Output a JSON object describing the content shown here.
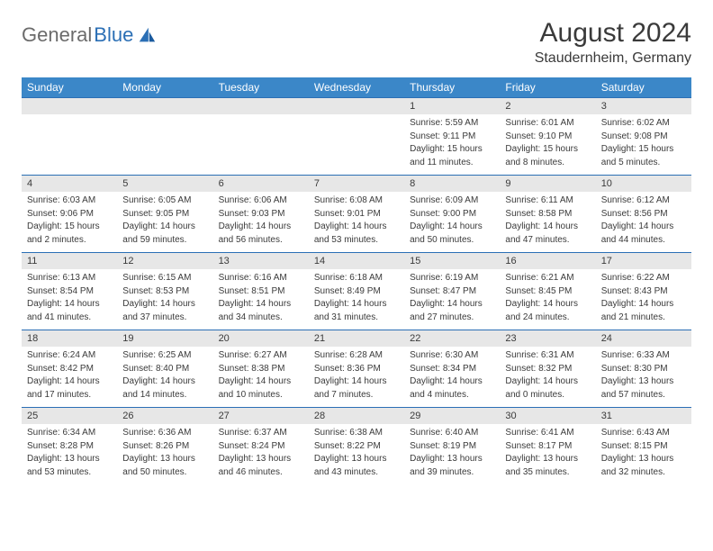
{
  "logo": {
    "part1": "General",
    "part2": "Blue"
  },
  "title": "August 2024",
  "location": "Staudernheim, Germany",
  "colors": {
    "header_bg": "#3b87c8",
    "daynum_bg": "#e7e7e7",
    "border": "#2b6fb5",
    "text": "#3a3a3a",
    "logo_gray": "#6b6b6b",
    "logo_blue": "#2b6fb5"
  },
  "dayHeaders": [
    "Sunday",
    "Monday",
    "Tuesday",
    "Wednesday",
    "Thursday",
    "Friday",
    "Saturday"
  ],
  "weeks": [
    {
      "nums": [
        "",
        "",
        "",
        "",
        "1",
        "2",
        "3"
      ],
      "cells": [
        null,
        null,
        null,
        null,
        {
          "sunrise": "Sunrise: 5:59 AM",
          "sunset": "Sunset: 9:11 PM",
          "day1": "Daylight: 15 hours",
          "day2": "and 11 minutes."
        },
        {
          "sunrise": "Sunrise: 6:01 AM",
          "sunset": "Sunset: 9:10 PM",
          "day1": "Daylight: 15 hours",
          "day2": "and 8 minutes."
        },
        {
          "sunrise": "Sunrise: 6:02 AM",
          "sunset": "Sunset: 9:08 PM",
          "day1": "Daylight: 15 hours",
          "day2": "and 5 minutes."
        }
      ]
    },
    {
      "nums": [
        "4",
        "5",
        "6",
        "7",
        "8",
        "9",
        "10"
      ],
      "cells": [
        {
          "sunrise": "Sunrise: 6:03 AM",
          "sunset": "Sunset: 9:06 PM",
          "day1": "Daylight: 15 hours",
          "day2": "and 2 minutes."
        },
        {
          "sunrise": "Sunrise: 6:05 AM",
          "sunset": "Sunset: 9:05 PM",
          "day1": "Daylight: 14 hours",
          "day2": "and 59 minutes."
        },
        {
          "sunrise": "Sunrise: 6:06 AM",
          "sunset": "Sunset: 9:03 PM",
          "day1": "Daylight: 14 hours",
          "day2": "and 56 minutes."
        },
        {
          "sunrise": "Sunrise: 6:08 AM",
          "sunset": "Sunset: 9:01 PM",
          "day1": "Daylight: 14 hours",
          "day2": "and 53 minutes."
        },
        {
          "sunrise": "Sunrise: 6:09 AM",
          "sunset": "Sunset: 9:00 PM",
          "day1": "Daylight: 14 hours",
          "day2": "and 50 minutes."
        },
        {
          "sunrise": "Sunrise: 6:11 AM",
          "sunset": "Sunset: 8:58 PM",
          "day1": "Daylight: 14 hours",
          "day2": "and 47 minutes."
        },
        {
          "sunrise": "Sunrise: 6:12 AM",
          "sunset": "Sunset: 8:56 PM",
          "day1": "Daylight: 14 hours",
          "day2": "and 44 minutes."
        }
      ]
    },
    {
      "nums": [
        "11",
        "12",
        "13",
        "14",
        "15",
        "16",
        "17"
      ],
      "cells": [
        {
          "sunrise": "Sunrise: 6:13 AM",
          "sunset": "Sunset: 8:54 PM",
          "day1": "Daylight: 14 hours",
          "day2": "and 41 minutes."
        },
        {
          "sunrise": "Sunrise: 6:15 AM",
          "sunset": "Sunset: 8:53 PM",
          "day1": "Daylight: 14 hours",
          "day2": "and 37 minutes."
        },
        {
          "sunrise": "Sunrise: 6:16 AM",
          "sunset": "Sunset: 8:51 PM",
          "day1": "Daylight: 14 hours",
          "day2": "and 34 minutes."
        },
        {
          "sunrise": "Sunrise: 6:18 AM",
          "sunset": "Sunset: 8:49 PM",
          "day1": "Daylight: 14 hours",
          "day2": "and 31 minutes."
        },
        {
          "sunrise": "Sunrise: 6:19 AM",
          "sunset": "Sunset: 8:47 PM",
          "day1": "Daylight: 14 hours",
          "day2": "and 27 minutes."
        },
        {
          "sunrise": "Sunrise: 6:21 AM",
          "sunset": "Sunset: 8:45 PM",
          "day1": "Daylight: 14 hours",
          "day2": "and 24 minutes."
        },
        {
          "sunrise": "Sunrise: 6:22 AM",
          "sunset": "Sunset: 8:43 PM",
          "day1": "Daylight: 14 hours",
          "day2": "and 21 minutes."
        }
      ]
    },
    {
      "nums": [
        "18",
        "19",
        "20",
        "21",
        "22",
        "23",
        "24"
      ],
      "cells": [
        {
          "sunrise": "Sunrise: 6:24 AM",
          "sunset": "Sunset: 8:42 PM",
          "day1": "Daylight: 14 hours",
          "day2": "and 17 minutes."
        },
        {
          "sunrise": "Sunrise: 6:25 AM",
          "sunset": "Sunset: 8:40 PM",
          "day1": "Daylight: 14 hours",
          "day2": "and 14 minutes."
        },
        {
          "sunrise": "Sunrise: 6:27 AM",
          "sunset": "Sunset: 8:38 PM",
          "day1": "Daylight: 14 hours",
          "day2": "and 10 minutes."
        },
        {
          "sunrise": "Sunrise: 6:28 AM",
          "sunset": "Sunset: 8:36 PM",
          "day1": "Daylight: 14 hours",
          "day2": "and 7 minutes."
        },
        {
          "sunrise": "Sunrise: 6:30 AM",
          "sunset": "Sunset: 8:34 PM",
          "day1": "Daylight: 14 hours",
          "day2": "and 4 minutes."
        },
        {
          "sunrise": "Sunrise: 6:31 AM",
          "sunset": "Sunset: 8:32 PM",
          "day1": "Daylight: 14 hours",
          "day2": "and 0 minutes."
        },
        {
          "sunrise": "Sunrise: 6:33 AM",
          "sunset": "Sunset: 8:30 PM",
          "day1": "Daylight: 13 hours",
          "day2": "and 57 minutes."
        }
      ]
    },
    {
      "nums": [
        "25",
        "26",
        "27",
        "28",
        "29",
        "30",
        "31"
      ],
      "cells": [
        {
          "sunrise": "Sunrise: 6:34 AM",
          "sunset": "Sunset: 8:28 PM",
          "day1": "Daylight: 13 hours",
          "day2": "and 53 minutes."
        },
        {
          "sunrise": "Sunrise: 6:36 AM",
          "sunset": "Sunset: 8:26 PM",
          "day1": "Daylight: 13 hours",
          "day2": "and 50 minutes."
        },
        {
          "sunrise": "Sunrise: 6:37 AM",
          "sunset": "Sunset: 8:24 PM",
          "day1": "Daylight: 13 hours",
          "day2": "and 46 minutes."
        },
        {
          "sunrise": "Sunrise: 6:38 AM",
          "sunset": "Sunset: 8:22 PM",
          "day1": "Daylight: 13 hours",
          "day2": "and 43 minutes."
        },
        {
          "sunrise": "Sunrise: 6:40 AM",
          "sunset": "Sunset: 8:19 PM",
          "day1": "Daylight: 13 hours",
          "day2": "and 39 minutes."
        },
        {
          "sunrise": "Sunrise: 6:41 AM",
          "sunset": "Sunset: 8:17 PM",
          "day1": "Daylight: 13 hours",
          "day2": "and 35 minutes."
        },
        {
          "sunrise": "Sunrise: 6:43 AM",
          "sunset": "Sunset: 8:15 PM",
          "day1": "Daylight: 13 hours",
          "day2": "and 32 minutes."
        }
      ]
    }
  ]
}
